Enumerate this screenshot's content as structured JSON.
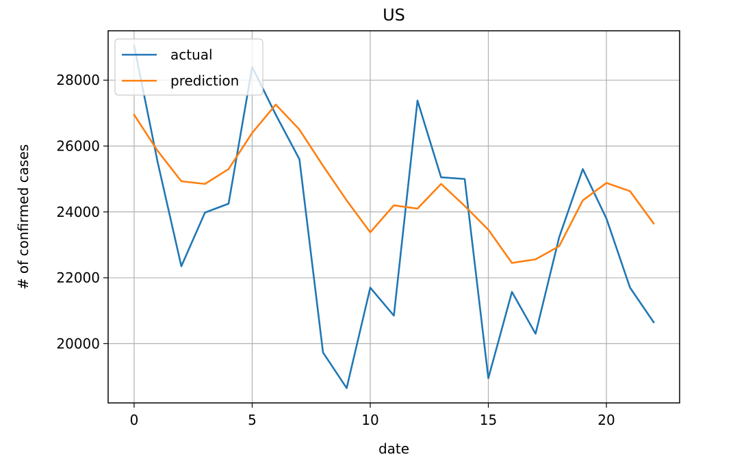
{
  "chart_data": {
    "type": "line",
    "title": "US",
    "xlabel": "date",
    "ylabel": "# of confirmed cases",
    "xlim": [
      -1.1,
      23.1
    ],
    "ylim": [
      18200,
      29500
    ],
    "xticks": [
      0,
      5,
      10,
      15,
      20
    ],
    "yticks": [
      20000,
      22000,
      24000,
      26000,
      28000
    ],
    "grid": true,
    "legend": "upper left",
    "x": [
      0,
      1,
      2,
      3,
      4,
      5,
      6,
      7,
      8,
      9,
      10,
      11,
      12,
      13,
      14,
      15,
      16,
      17,
      18,
      19,
      20,
      21,
      22
    ],
    "series": [
      {
        "name": "actual",
        "color": "#1f77b4",
        "values": [
          29050,
          25500,
          22350,
          23980,
          24250,
          28400,
          26950,
          25600,
          19730,
          18650,
          21700,
          20850,
          27380,
          25050,
          25000,
          18950,
          21570,
          20300,
          23230,
          25300,
          23800,
          21700,
          20650
        ]
      },
      {
        "name": "prediction",
        "color": "#ff7f0e",
        "values": [
          26950,
          25850,
          24930,
          24850,
          25300,
          26400,
          27260,
          26500,
          25400,
          24350,
          23380,
          24200,
          24100,
          24850,
          24180,
          23460,
          22450,
          22560,
          22960,
          24350,
          24880,
          24630,
          23650
        ]
      }
    ]
  }
}
